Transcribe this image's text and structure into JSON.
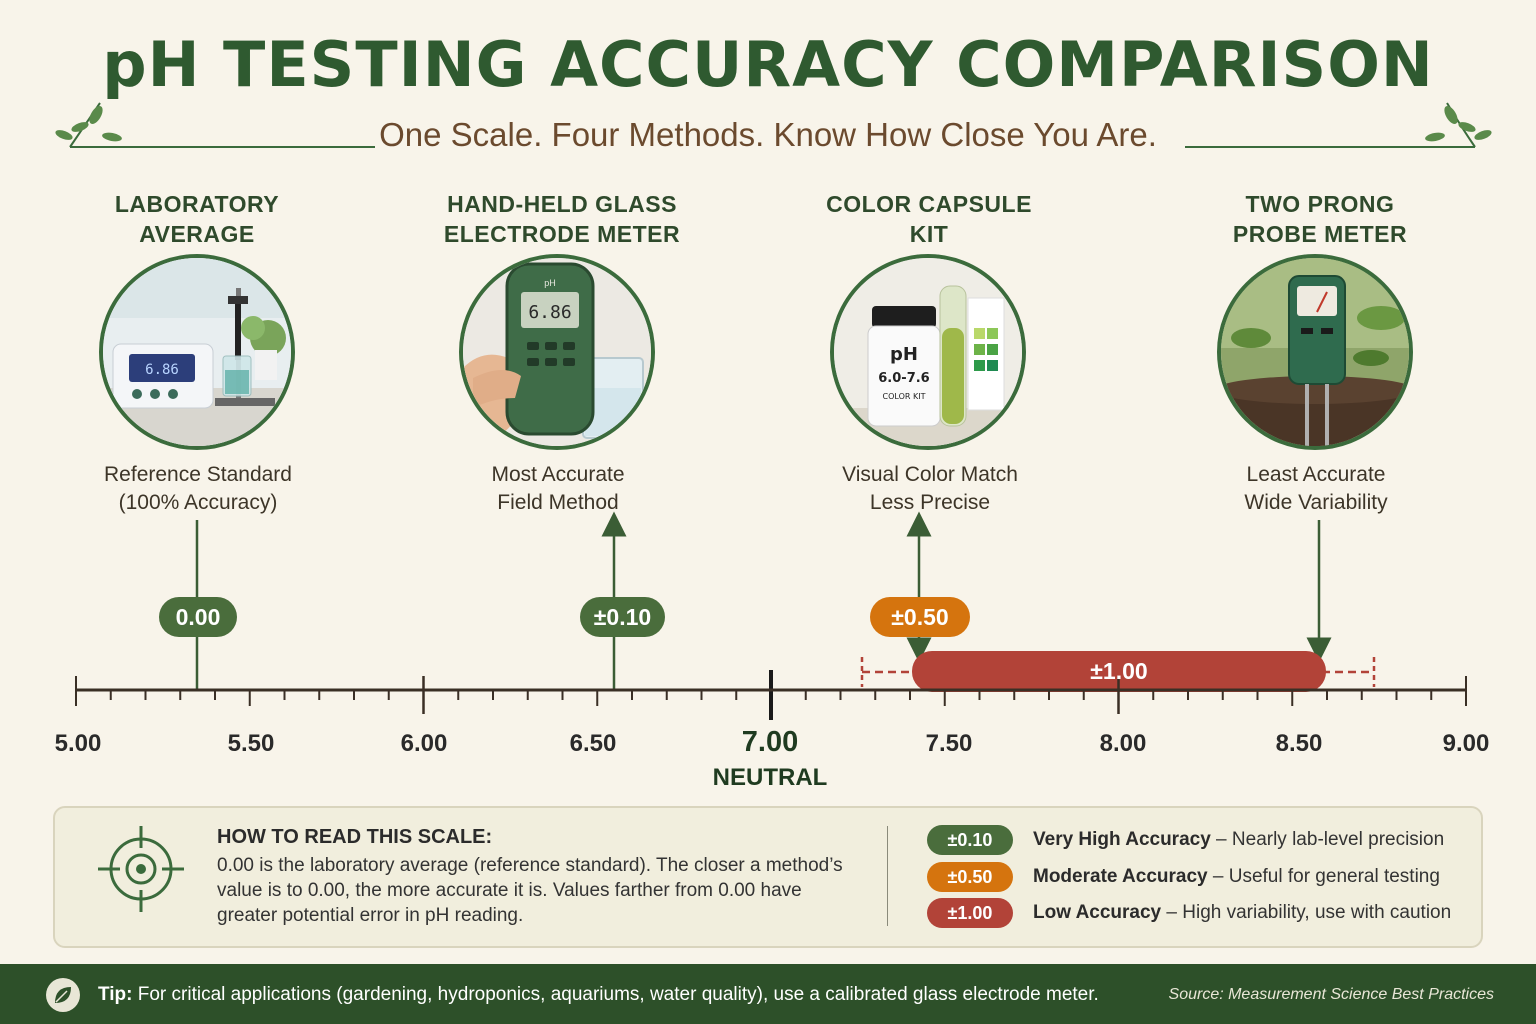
{
  "header": {
    "title": "pH TESTING ACCURACY COMPARISON",
    "subtitle": "One Scale. Four Methods. Know How Close You Are."
  },
  "methods": [
    {
      "title_line1": "LABORATORY",
      "title_line2": "AVERAGE",
      "desc_line1": "Reference Standard",
      "desc_line2": "(100% Accuracy)",
      "value_label": "0.00",
      "icon": "lab-meter-icon"
    },
    {
      "title_line1": "HAND-HELD GLASS",
      "title_line2": "ELECTRODE METER",
      "desc_line1": "Most Accurate",
      "desc_line2": "Field Method",
      "value_label": "±0.10",
      "icon": "handheld-meter-icon",
      "screen_value": "6.86",
      "device_label": "pH"
    },
    {
      "title_line1": "COLOR CAPSULE",
      "title_line2": "KIT",
      "desc_line1": "Visual Color Match",
      "desc_line2": "Less Precise",
      "value_label": "±0.50",
      "icon": "color-kit-icon",
      "bottle_label1": "pH",
      "bottle_label2": "6.0-7.6",
      "bottle_label3": "COLOR KIT"
    },
    {
      "title_line1": "TWO PRONG",
      "title_line2": "PROBE METER",
      "desc_line1": "Least Accurate",
      "desc_line2": "Wide Variability",
      "value_label": "±1.00",
      "icon": "probe-meter-icon"
    }
  ],
  "scale": {
    "min": 5.0,
    "max": 9.0,
    "tick_labels": [
      "5.00",
      "5.50",
      "6.00",
      "6.50",
      "7.00",
      "7.50",
      "8.00",
      "8.50",
      "9.00"
    ],
    "neutral_label": "NEUTRAL"
  },
  "legend": {
    "how_title": "HOW TO READ THIS SCALE:",
    "how_body": "0.00 is the laboratory average (reference standard). The closer a method’s value is to 0.00, the more accurate it is. Values farther from 0.00 have greater potential error in pH reading.",
    "items": [
      {
        "pill": "±0.10",
        "strong": "Very High Accuracy",
        "text": " – Nearly lab-level precision"
      },
      {
        "pill": "±0.50",
        "strong": "Moderate Accuracy",
        "text": " – Useful for general testing"
      },
      {
        "pill": "±1.00",
        "strong": "Low Accuracy",
        "text": " – High variability, use with caution"
      }
    ]
  },
  "footer": {
    "tip_label": "Tip:",
    "tip_text": " For critical applications (gardening, hydroponics, aquariums, water quality), use a calibrated glass electrode meter.",
    "source": "Source: Measurement Science Best Practices"
  },
  "colors": {
    "green": "#4a6d3c",
    "orange": "#d5740e",
    "red": "#b24338",
    "title_green": "#2f5a30",
    "background": "#f8f4ea"
  }
}
